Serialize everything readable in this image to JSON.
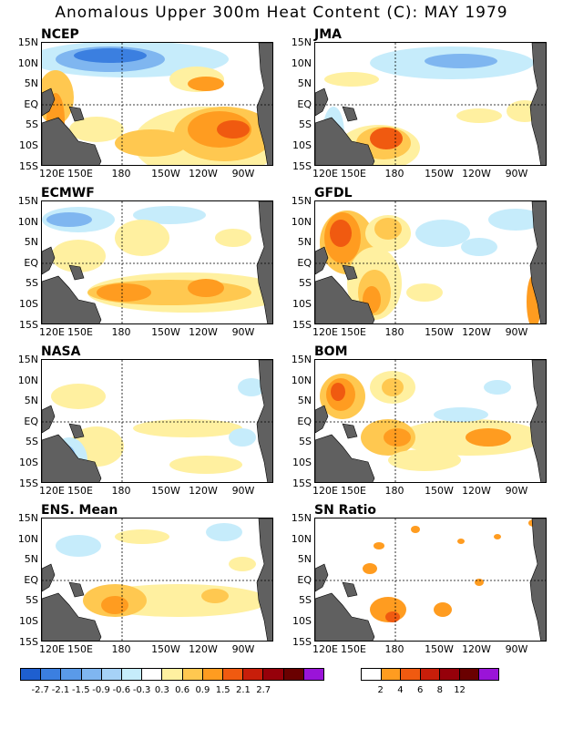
{
  "title": "Anomalous Upper 300m Heat Content (C): MAY 1979",
  "panels": [
    {
      "name": "NCEP"
    },
    {
      "name": "JMA"
    },
    {
      "name": "ECMWF"
    },
    {
      "name": "GFDL"
    },
    {
      "name": "NASA"
    },
    {
      "name": "BOM"
    },
    {
      "name": "ENS. Mean"
    },
    {
      "name": "SN Ratio"
    }
  ],
  "lat_labels": [
    "15N",
    "10N",
    "5N",
    "EQ",
    "5S",
    "10S",
    "15S"
  ],
  "lon_labels": [
    "120E",
    "150E",
    "180",
    "150W",
    "120W",
    "90W"
  ],
  "colorbar_main": {
    "colors": [
      "#1e5fd0",
      "#3b7fe0",
      "#5a9ae8",
      "#7fb6f0",
      "#a6d2f7",
      "#c6ecfb",
      "#ffffff",
      "#fff0a0",
      "#ffc850",
      "#ff9c20",
      "#f05a10",
      "#c81e0a",
      "#96000a",
      "#6a0000",
      "#9a14d8"
    ],
    "ticks": [
      "-2.7",
      "-2.1",
      "-1.5",
      "-0.9",
      "-0.6",
      "-0.3",
      "0.3",
      "0.6",
      "0.9",
      "1.5",
      "2.1",
      "2.7"
    ]
  },
  "colorbar_sn": {
    "colors": [
      "#ffffff",
      "#ff9c20",
      "#f05a10",
      "#c81e0a",
      "#96000a",
      "#6a0000",
      "#9a14d8"
    ],
    "ticks": [
      "2",
      "4",
      "6",
      "8",
      "12"
    ]
  }
}
